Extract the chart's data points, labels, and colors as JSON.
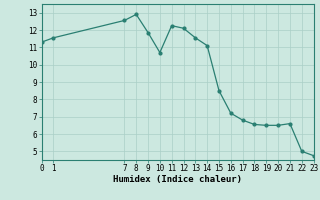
{
  "x": [
    0,
    1,
    7,
    8,
    9,
    10,
    11,
    12,
    13,
    14,
    15,
    16,
    17,
    18,
    19,
    20,
    21,
    22,
    23
  ],
  "y": [
    11.3,
    11.55,
    12.55,
    12.9,
    11.85,
    10.7,
    12.25,
    12.1,
    11.55,
    11.1,
    8.5,
    7.2,
    6.8,
    6.55,
    6.5,
    6.5,
    6.6,
    5.0,
    4.75
  ],
  "xlabel": "Humidex (Indice chaleur)",
  "xlim": [
    0,
    23
  ],
  "ylim": [
    4.5,
    13.5
  ],
  "yticks": [
    5,
    6,
    7,
    8,
    9,
    10,
    11,
    12,
    13
  ],
  "xticks": [
    0,
    1,
    7,
    8,
    9,
    10,
    11,
    12,
    13,
    14,
    15,
    16,
    17,
    18,
    19,
    20,
    21,
    22,
    23
  ],
  "xtick_labels": [
    "0",
    "1",
    "7",
    "8",
    "9",
    "10",
    "11",
    "12",
    "13",
    "14",
    "15",
    "16",
    "17",
    "18",
    "19",
    "20",
    "21",
    "22",
    "23"
  ],
  "line_color": "#2a7f72",
  "bg_color": "#cce8e0",
  "grid_color": "#aacfc7",
  "tick_fontsize": 5.5,
  "label_fontsize": 6.5
}
